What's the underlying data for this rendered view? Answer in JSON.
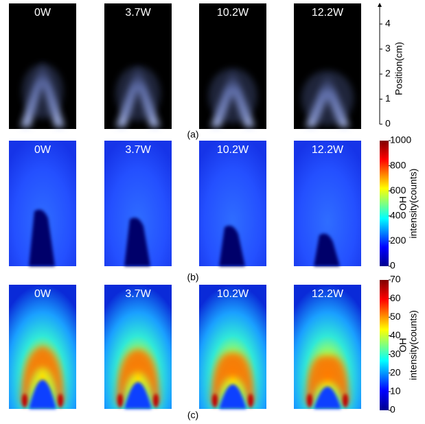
{
  "rows": [
    {
      "label": "(a)",
      "panels": [
        "0W",
        "3.7W",
        "10.2W",
        "12.2W"
      ]
    },
    {
      "label": "(b)",
      "panels": [
        "0W",
        "3.7W",
        "10.2W",
        "12.2W"
      ]
    },
    {
      "label": "(c)",
      "panels": [
        "0W",
        "3.7W",
        "10.2W",
        "12.2W"
      ]
    }
  ],
  "position_axis": {
    "label": "Position(cm)",
    "ticks": [
      0,
      1,
      2,
      3,
      4
    ]
  },
  "colorbars": [
    {
      "label_lines": [
        "OH",
        "intensity(counts)"
      ],
      "ticks": [
        0,
        200,
        400,
        600,
        800,
        1000
      ]
    },
    {
      "label_lines": [
        "OH",
        "intensity(counts)"
      ],
      "ticks": [
        0,
        10,
        20,
        30,
        40,
        50,
        60,
        70
      ]
    }
  ]
}
